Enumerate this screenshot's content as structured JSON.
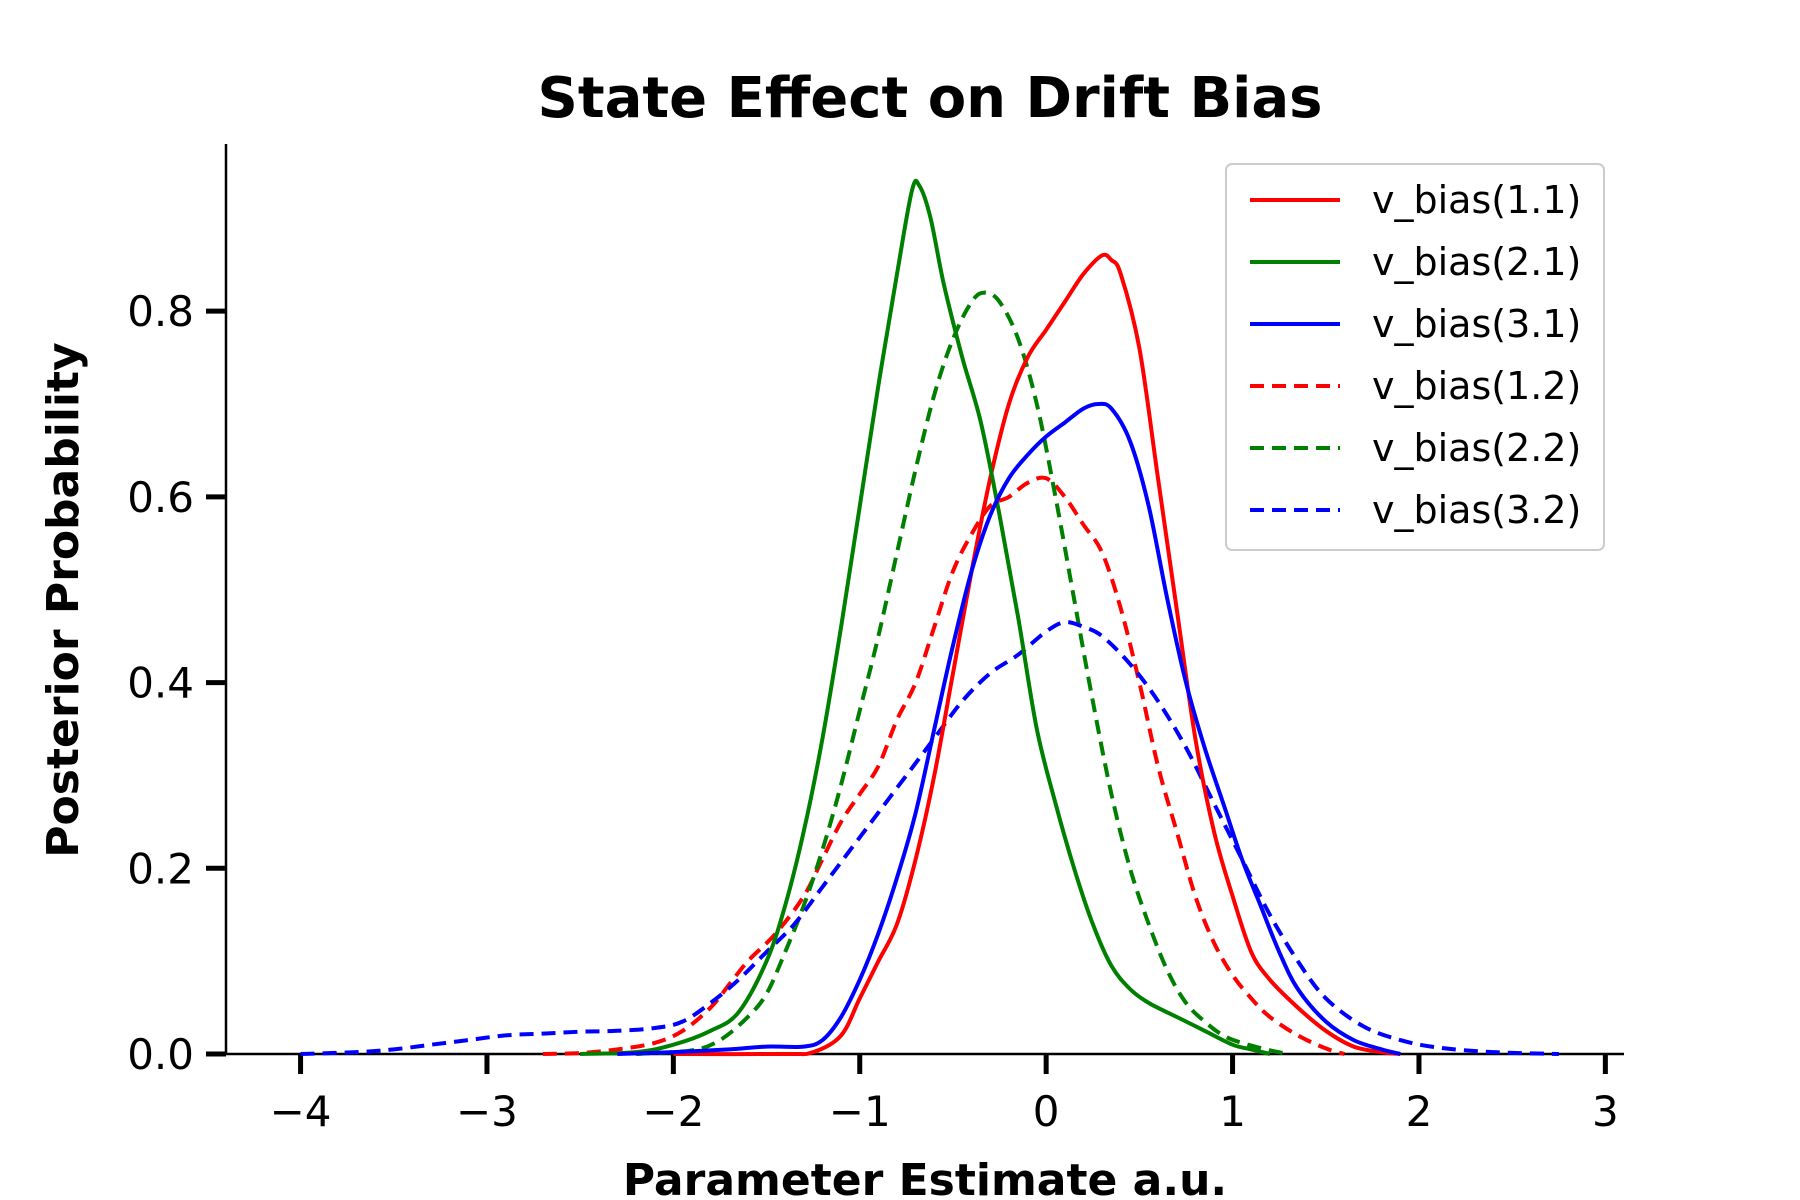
{
  "chart_data": {
    "type": "line",
    "title": "State Effect on Drift Bias",
    "xlabel": "Parameter Estimate a.u.",
    "ylabel": "Posterior Probability",
    "xlim": [
      -4.4,
      3.1
    ],
    "ylim": [
      0,
      0.98
    ],
    "xticks": [
      -4,
      -3,
      -2,
      -1,
      0,
      1,
      2,
      3
    ],
    "xtick_labels": [
      "−4",
      "−3",
      "−2",
      "−1",
      "0",
      "1",
      "2",
      "3"
    ],
    "yticks": [
      0.0,
      0.2,
      0.4,
      0.6,
      0.8
    ],
    "ytick_labels": [
      "0.0",
      "0.2",
      "0.4",
      "0.6",
      "0.8"
    ],
    "grid": false,
    "legend_position": "top-right",
    "series": [
      {
        "name": "v_bias(1.1)",
        "color": "#ff0000",
        "dash": "solid",
        "points": [
          [
            -2.0,
            0.0
          ],
          [
            -1.4,
            0.0
          ],
          [
            -1.25,
            0.002
          ],
          [
            -1.1,
            0.02
          ],
          [
            -1.0,
            0.06
          ],
          [
            -0.9,
            0.1
          ],
          [
            -0.8,
            0.14
          ],
          [
            -0.7,
            0.21
          ],
          [
            -0.6,
            0.3
          ],
          [
            -0.5,
            0.41
          ],
          [
            -0.4,
            0.52
          ],
          [
            -0.3,
            0.62
          ],
          [
            -0.2,
            0.7
          ],
          [
            -0.1,
            0.75
          ],
          [
            0.0,
            0.78
          ],
          [
            0.1,
            0.81
          ],
          [
            0.2,
            0.84
          ],
          [
            0.3,
            0.86
          ],
          [
            0.35,
            0.855
          ],
          [
            0.4,
            0.84
          ],
          [
            0.5,
            0.76
          ],
          [
            0.6,
            0.62
          ],
          [
            0.7,
            0.48
          ],
          [
            0.8,
            0.34
          ],
          [
            0.9,
            0.24
          ],
          [
            1.0,
            0.17
          ],
          [
            1.1,
            0.11
          ],
          [
            1.2,
            0.08
          ],
          [
            1.35,
            0.05
          ],
          [
            1.5,
            0.025
          ],
          [
            1.65,
            0.008
          ],
          [
            1.8,
            0.002
          ],
          [
            1.9,
            0.0
          ]
        ]
      },
      {
        "name": "v_bias(2.1)",
        "color": "#008000",
        "dash": "solid",
        "points": [
          [
            -2.5,
            0.0
          ],
          [
            -2.2,
            0.002
          ],
          [
            -2.0,
            0.01
          ],
          [
            -1.8,
            0.025
          ],
          [
            -1.65,
            0.045
          ],
          [
            -1.5,
            0.1
          ],
          [
            -1.4,
            0.16
          ],
          [
            -1.3,
            0.24
          ],
          [
            -1.2,
            0.34
          ],
          [
            -1.1,
            0.46
          ],
          [
            -1.0,
            0.59
          ],
          [
            -0.9,
            0.72
          ],
          [
            -0.8,
            0.84
          ],
          [
            -0.72,
            0.93
          ],
          [
            -0.68,
            0.935
          ],
          [
            -0.62,
            0.9
          ],
          [
            -0.55,
            0.83
          ],
          [
            -0.45,
            0.75
          ],
          [
            -0.35,
            0.68
          ],
          [
            -0.25,
            0.58
          ],
          [
            -0.15,
            0.47
          ],
          [
            -0.05,
            0.35
          ],
          [
            0.05,
            0.27
          ],
          [
            0.15,
            0.2
          ],
          [
            0.25,
            0.14
          ],
          [
            0.35,
            0.095
          ],
          [
            0.45,
            0.07
          ],
          [
            0.55,
            0.055
          ],
          [
            0.7,
            0.04
          ],
          [
            0.85,
            0.025
          ],
          [
            1.0,
            0.01
          ],
          [
            1.1,
            0.005
          ],
          [
            1.2,
            0.0
          ]
        ]
      },
      {
        "name": "v_bias(3.1)",
        "color": "#0000ff",
        "dash": "solid",
        "points": [
          [
            -2.3,
            0.0
          ],
          [
            -2.0,
            0.002
          ],
          [
            -1.7,
            0.005
          ],
          [
            -1.5,
            0.008
          ],
          [
            -1.3,
            0.008
          ],
          [
            -1.2,
            0.015
          ],
          [
            -1.1,
            0.04
          ],
          [
            -1.0,
            0.08
          ],
          [
            -0.9,
            0.13
          ],
          [
            -0.8,
            0.19
          ],
          [
            -0.7,
            0.26
          ],
          [
            -0.6,
            0.35
          ],
          [
            -0.5,
            0.44
          ],
          [
            -0.4,
            0.52
          ],
          [
            -0.3,
            0.58
          ],
          [
            -0.2,
            0.62
          ],
          [
            -0.1,
            0.645
          ],
          [
            0.0,
            0.665
          ],
          [
            0.1,
            0.68
          ],
          [
            0.2,
            0.695
          ],
          [
            0.28,
            0.7
          ],
          [
            0.35,
            0.695
          ],
          [
            0.45,
            0.66
          ],
          [
            0.55,
            0.59
          ],
          [
            0.65,
            0.49
          ],
          [
            0.75,
            0.4
          ],
          [
            0.85,
            0.33
          ],
          [
            0.95,
            0.27
          ],
          [
            1.05,
            0.21
          ],
          [
            1.15,
            0.16
          ],
          [
            1.25,
            0.11
          ],
          [
            1.35,
            0.07
          ],
          [
            1.5,
            0.035
          ],
          [
            1.65,
            0.015
          ],
          [
            1.8,
            0.005
          ],
          [
            1.9,
            0.0
          ]
        ]
      },
      {
        "name": "v_bias(1.2)",
        "color": "#ff0000",
        "dash": "dashed",
        "points": [
          [
            -2.7,
            0.0
          ],
          [
            -2.5,
            0.001
          ],
          [
            -2.3,
            0.005
          ],
          [
            -2.1,
            0.012
          ],
          [
            -1.95,
            0.025
          ],
          [
            -1.8,
            0.05
          ],
          [
            -1.7,
            0.075
          ],
          [
            -1.6,
            0.1
          ],
          [
            -1.45,
            0.13
          ],
          [
            -1.3,
            0.17
          ],
          [
            -1.2,
            0.21
          ],
          [
            -1.1,
            0.25
          ],
          [
            -1.0,
            0.28
          ],
          [
            -0.9,
            0.31
          ],
          [
            -0.8,
            0.36
          ],
          [
            -0.7,
            0.4
          ],
          [
            -0.6,
            0.46
          ],
          [
            -0.5,
            0.52
          ],
          [
            -0.4,
            0.56
          ],
          [
            -0.3,
            0.59
          ],
          [
            -0.2,
            0.6
          ],
          [
            -0.1,
            0.615
          ],
          [
            0.0,
            0.62
          ],
          [
            0.1,
            0.6
          ],
          [
            0.2,
            0.57
          ],
          [
            0.3,
            0.54
          ],
          [
            0.4,
            0.48
          ],
          [
            0.5,
            0.4
          ],
          [
            0.6,
            0.31
          ],
          [
            0.7,
            0.24
          ],
          [
            0.8,
            0.17
          ],
          [
            0.9,
            0.12
          ],
          [
            1.0,
            0.085
          ],
          [
            1.1,
            0.06
          ],
          [
            1.2,
            0.04
          ],
          [
            1.35,
            0.02
          ],
          [
            1.5,
            0.006
          ],
          [
            1.6,
            0.0
          ]
        ]
      },
      {
        "name": "v_bias(2.2)",
        "color": "#008000",
        "dash": "dashed",
        "points": [
          [
            -2.2,
            0.0
          ],
          [
            -1.9,
            0.004
          ],
          [
            -1.75,
            0.015
          ],
          [
            -1.6,
            0.04
          ],
          [
            -1.5,
            0.065
          ],
          [
            -1.4,
            0.11
          ],
          [
            -1.3,
            0.16
          ],
          [
            -1.2,
            0.22
          ],
          [
            -1.1,
            0.29
          ],
          [
            -1.0,
            0.37
          ],
          [
            -0.9,
            0.45
          ],
          [
            -0.8,
            0.54
          ],
          [
            -0.7,
            0.63
          ],
          [
            -0.6,
            0.71
          ],
          [
            -0.5,
            0.77
          ],
          [
            -0.4,
            0.81
          ],
          [
            -0.33,
            0.82
          ],
          [
            -0.25,
            0.81
          ],
          [
            -0.15,
            0.77
          ],
          [
            -0.05,
            0.7
          ],
          [
            0.05,
            0.6
          ],
          [
            0.15,
            0.49
          ],
          [
            0.25,
            0.38
          ],
          [
            0.35,
            0.28
          ],
          [
            0.45,
            0.2
          ],
          [
            0.55,
            0.14
          ],
          [
            0.65,
            0.09
          ],
          [
            0.75,
            0.055
          ],
          [
            0.85,
            0.035
          ],
          [
            0.95,
            0.02
          ],
          [
            1.05,
            0.012
          ],
          [
            1.2,
            0.004
          ],
          [
            1.3,
            0.0
          ]
        ]
      },
      {
        "name": "v_bias(3.2)",
        "color": "#0000ff",
        "dash": "dashed",
        "points": [
          [
            -4.0,
            0.0
          ],
          [
            -3.7,
            0.002
          ],
          [
            -3.5,
            0.005
          ],
          [
            -3.3,
            0.01
          ],
          [
            -3.1,
            0.015
          ],
          [
            -2.9,
            0.02
          ],
          [
            -2.7,
            0.022
          ],
          [
            -2.5,
            0.024
          ],
          [
            -2.3,
            0.025
          ],
          [
            -2.1,
            0.028
          ],
          [
            -1.95,
            0.035
          ],
          [
            -1.8,
            0.055
          ],
          [
            -1.65,
            0.08
          ],
          [
            -1.5,
            0.11
          ],
          [
            -1.35,
            0.14
          ],
          [
            -1.2,
            0.18
          ],
          [
            -1.05,
            0.22
          ],
          [
            -0.9,
            0.26
          ],
          [
            -0.75,
            0.3
          ],
          [
            -0.6,
            0.34
          ],
          [
            -0.45,
            0.38
          ],
          [
            -0.3,
            0.41
          ],
          [
            -0.15,
            0.43
          ],
          [
            0.0,
            0.455
          ],
          [
            0.1,
            0.465
          ],
          [
            0.2,
            0.46
          ],
          [
            0.3,
            0.45
          ],
          [
            0.45,
            0.42
          ],
          [
            0.6,
            0.38
          ],
          [
            0.75,
            0.33
          ],
          [
            0.9,
            0.27
          ],
          [
            1.05,
            0.21
          ],
          [
            1.2,
            0.15
          ],
          [
            1.35,
            0.1
          ],
          [
            1.5,
            0.06
          ],
          [
            1.7,
            0.03
          ],
          [
            1.9,
            0.015
          ],
          [
            2.1,
            0.007
          ],
          [
            2.4,
            0.002
          ],
          [
            2.75,
            0.0
          ]
        ]
      }
    ]
  }
}
